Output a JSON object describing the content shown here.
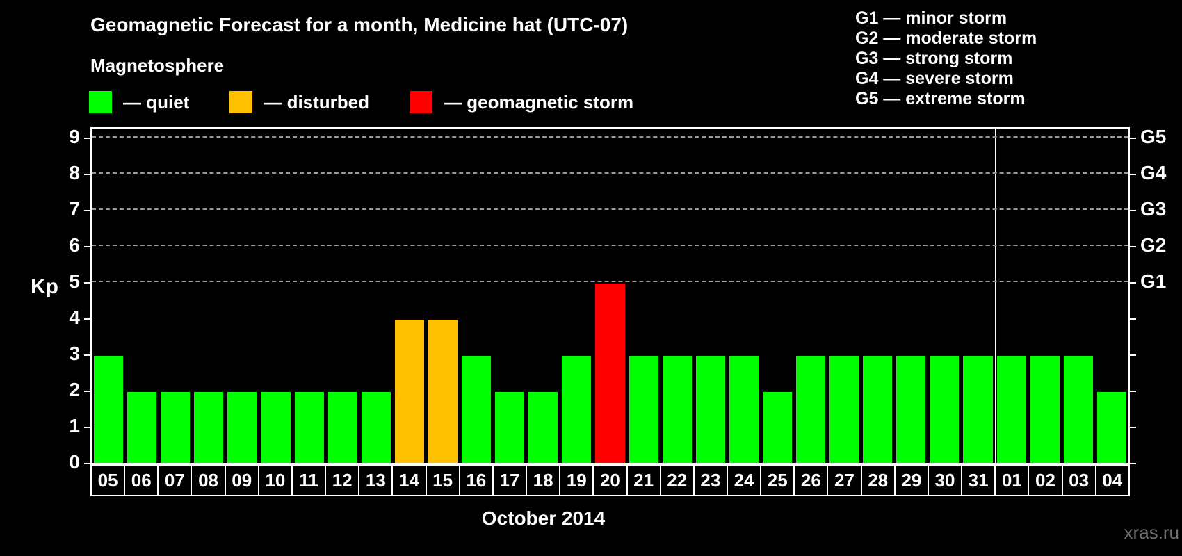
{
  "header": {
    "title": "Geomagnetic Forecast for a month, Medicine hat (UTC-07)",
    "subtitle": "Magnetosphere"
  },
  "legend": {
    "items": [
      {
        "key": "quiet",
        "color": "#00ff00",
        "label": "— quiet"
      },
      {
        "key": "disturbed",
        "color": "#ffc000",
        "label": "— disturbed"
      },
      {
        "key": "storm",
        "color": "#ff0000",
        "label": "— geomagnetic storm"
      }
    ]
  },
  "g_scale_legend": [
    "G1 — minor storm",
    "G2 — moderate storm",
    "G3 — strong storm",
    "G4 — severe storm",
    "G5 — extreme storm"
  ],
  "chart_data": {
    "type": "bar",
    "title": "Geomagnetic Forecast for a month, Medicine hat (UTC-07)",
    "ylabel": "Kp",
    "xlabel": "October 2014",
    "ylim": [
      0,
      9
    ],
    "yticks": [
      0,
      1,
      2,
      3,
      4,
      5,
      6,
      7,
      8,
      9
    ],
    "gridlines_at": [
      5,
      6,
      7,
      8,
      9
    ],
    "grid_color": "#999999",
    "right_axis": [
      {
        "label": "G1",
        "kp": 5
      },
      {
        "label": "G2",
        "kp": 6
      },
      {
        "label": "G3",
        "kp": 7
      },
      {
        "label": "G4",
        "kp": 8
      },
      {
        "label": "G5",
        "kp": 9
      }
    ],
    "categories": [
      "05",
      "06",
      "07",
      "08",
      "09",
      "10",
      "11",
      "12",
      "13",
      "14",
      "15",
      "16",
      "17",
      "18",
      "19",
      "20",
      "21",
      "22",
      "23",
      "24",
      "25",
      "26",
      "27",
      "28",
      "29",
      "30",
      "31",
      "01",
      "02",
      "03",
      "04"
    ],
    "values": [
      3,
      2,
      2,
      2,
      2,
      2,
      2,
      2,
      2,
      4,
      4,
      3,
      2,
      2,
      3,
      5,
      3,
      3,
      3,
      3,
      2,
      3,
      3,
      3,
      3,
      3,
      3,
      3,
      3,
      3,
      2
    ],
    "statuses": [
      "quiet",
      "quiet",
      "quiet",
      "quiet",
      "quiet",
      "quiet",
      "quiet",
      "quiet",
      "quiet",
      "disturbed",
      "disturbed",
      "quiet",
      "quiet",
      "quiet",
      "quiet",
      "storm",
      "quiet",
      "quiet",
      "quiet",
      "quiet",
      "quiet",
      "quiet",
      "quiet",
      "quiet",
      "quiet",
      "quiet",
      "quiet",
      "quiet",
      "quiet",
      "quiet",
      "quiet"
    ],
    "status_colors": {
      "quiet": "#00ff00",
      "disturbed": "#ffc000",
      "storm": "#ff0000"
    },
    "month_days_count": 27,
    "separator_color": "#ffffff",
    "legend_position": "top",
    "grid": "dashed horizontal at G-levels only"
  },
  "footer": {
    "month_label": "October 2014",
    "watermark": "xras.ru"
  }
}
